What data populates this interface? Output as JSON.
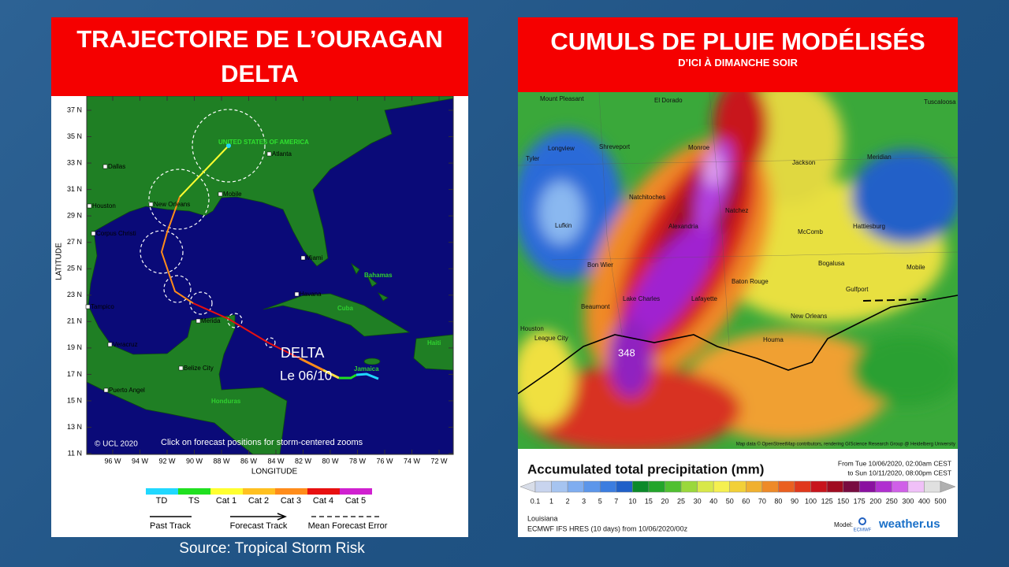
{
  "left_panel": {
    "title": "TRAJECTOIRE DE L’OURAGAN DELTA",
    "lat_labels": [
      "37 N",
      "35 N",
      "33 N",
      "31 N",
      "29 N",
      "27 N",
      "25 N",
      "23 N",
      "21 N",
      "19 N",
      "17 N",
      "15 N",
      "13 N",
      "11 N"
    ],
    "lon_labels": [
      "96 W",
      "94 W",
      "92 W",
      "90 W",
      "88 W",
      "86 W",
      "84 W",
      "82 W",
      "80 W",
      "78 W",
      "76 W",
      "74 W",
      "72 W"
    ],
    "y_axis_label": "LATITUDE",
    "x_axis_label": "LONGITUDE",
    "places": [
      "UNITED STATES OF AMERICA",
      "Atlanta",
      "Dallas",
      "Mobile",
      "Houston",
      "New Orleans",
      "Corpus Christi",
      "Miami",
      "Bahamas",
      "Havana",
      "Cuba",
      "Tampico",
      "Merida",
      "Haiti",
      "Veracruz",
      "Jamaica",
      "Belize City",
      "Puerto Angel",
      "Honduras"
    ],
    "storm_name": "DELTA",
    "storm_date": "Le 06/10",
    "copyright": "© UCL 2020",
    "note": "Click on forecast positions for storm-centered zooms",
    "category_legend": [
      "TD",
      "TS",
      "Cat 1",
      "Cat 2",
      "Cat 3",
      "Cat 4",
      "Cat 5"
    ],
    "track_legend": [
      "Past Track",
      "Forecast Track",
      "Mean Forecast Error"
    ]
  },
  "source": "Source: Tropical Storm Risk",
  "right_panel": {
    "title": "CUMULS DE PLUIE MODÉLISÉS",
    "subtitle": "D’ICI À DIMANCHE SOIR",
    "places": [
      "Mount Pleasant",
      "El Dorado",
      "Tuscaloosa",
      "Longview",
      "Shreveport",
      "Monroe",
      "Tyler",
      "Jackson",
      "Meridian",
      "Natchitoches",
      "Natchez",
      "Lufkin",
      "Alexandria",
      "McComb",
      "Hattiesburg",
      "Bogalusa",
      "Mobile",
      "Bon Wier",
      "Baton Rouge",
      "Gulfport",
      "Beaumont",
      "Lake Charles",
      "Lafayette",
      "New Orleans",
      "Houston",
      "League City",
      "Houma",
      "348"
    ],
    "map_credit": "Map data © OpenStreetMap contributors, rendering GIScience Research Group @ Heidelberg University",
    "scale_title": "Accumulated total precipitation (mm)",
    "period": [
      "From Tue 10/06/2020, 02:00am CEST",
      "to Sun 10/11/2020, 08:00pm CEST"
    ],
    "scale_labels": [
      "0.1",
      "1",
      "2",
      "3",
      "5",
      "7",
      "10",
      "15",
      "20",
      "25",
      "30",
      "40",
      "50",
      "60",
      "70",
      "80",
      "90",
      "100",
      "125",
      "150",
      "175",
      "200",
      "250",
      "300",
      "400",
      "500"
    ],
    "region": "Louisiana",
    "model_run": "ECMWF IFS HRES (10 days) from 10/06/2020/00z",
    "model_label": "Model:",
    "model_logo": "ECMWF",
    "brand": "weather.us"
  }
}
